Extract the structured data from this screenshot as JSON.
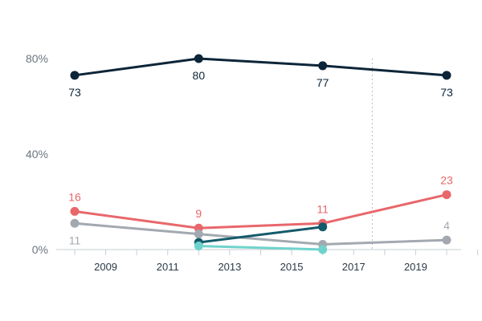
{
  "chart_data": {
    "type": "line",
    "x_ticks": [
      "2009",
      "2011",
      "2013",
      "2015",
      "2017",
      "2019"
    ],
    "y_ticks": [
      "0%",
      "40%",
      "80%"
    ],
    "xlim": [
      2007.5,
      2021
    ],
    "ylim": [
      0,
      80
    ],
    "reference_line_x": 2017.6,
    "grid": false,
    "series": [
      {
        "color": "#0d2538",
        "points": [
          [
            2008,
            73
          ],
          [
            2012,
            80
          ],
          [
            2016,
            77
          ],
          [
            2020,
            73
          ]
        ],
        "labels": [
          "73",
          "80",
          "77",
          "73"
        ],
        "label_positions": [
          "below",
          "below",
          "below",
          "below"
        ]
      },
      {
        "color": "#e8676b",
        "points": [
          [
            2008,
            16
          ],
          [
            2012,
            9
          ],
          [
            2016,
            11
          ],
          [
            2020,
            23
          ]
        ],
        "labels": [
          "16",
          "9",
          "11",
          "23"
        ],
        "label_positions": [
          "above",
          "above",
          "above",
          "above"
        ]
      },
      {
        "color": "#a3a9b0",
        "points": [
          [
            2008,
            11
          ],
          [
            2012,
            6.5
          ],
          [
            2016,
            2.2
          ],
          [
            2020,
            4
          ]
        ],
        "labels": [
          "11",
          "",
          "",
          "4"
        ],
        "label_positions": [
          "below",
          "none",
          "none",
          "above"
        ]
      },
      {
        "color": "#135a6b",
        "points": [
          [
            2012,
            3
          ],
          [
            2016,
            9.5
          ]
        ],
        "labels": [
          "",
          ""
        ],
        "label_positions": [
          "none",
          "none"
        ]
      },
      {
        "color": "#6fd3cc",
        "points": [
          [
            2012,
            1.5
          ],
          [
            2016,
            0
          ]
        ],
        "labels": [
          "",
          ""
        ],
        "label_positions": [
          "none",
          "none"
        ]
      }
    ]
  }
}
